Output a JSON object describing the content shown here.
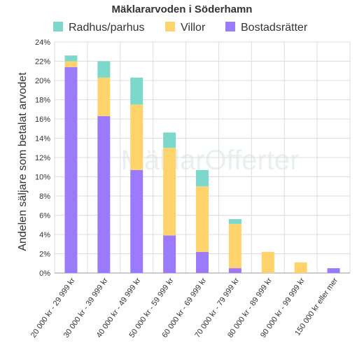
{
  "chart_data": {
    "type": "bar",
    "stacked": true,
    "title": "Mäklararvoden i Söderhamn",
    "ylabel": "Andelen säljare som betalat arvodet",
    "xlabel": "",
    "categories": [
      "20 000 kr - 29 999 kr",
      "30 000 kr - 39 999 kr",
      "40 000 kr - 49 999 kr",
      "50 000 kr - 59 999 kr",
      "60 000 kr - 69 999 kr",
      "70 000 kr - 79 999 kr",
      "80 000 kr - 89 999 kr",
      "90 000 kr - 99 999 kr",
      "150 000 kr eller mer"
    ],
    "series": [
      {
        "name": "Bostadsrätter",
        "color": "#9b7bfb",
        "values": [
          21.4,
          16.3,
          10.7,
          3.9,
          2.2,
          0.5,
          0,
          0,
          0.5
        ]
      },
      {
        "name": "Villor",
        "color": "#ffd36b",
        "values": [
          0.6,
          4.0,
          6.8,
          9.1,
          6.8,
          4.6,
          2.2,
          1.1,
          0
        ]
      },
      {
        "name": "Radhus/parhus",
        "color": "#7dd8cc",
        "values": [
          0.6,
          1.7,
          2.8,
          1.6,
          1.7,
          0.5,
          0,
          0,
          0
        ]
      }
    ],
    "legend_order": [
      "Radhus/parhus",
      "Villor",
      "Bostadsrätter"
    ],
    "ylim": [
      0,
      24
    ],
    "yticks": [
      "0%",
      "2%",
      "4%",
      "6%",
      "8%",
      "10%",
      "12%",
      "14%",
      "16%",
      "18%",
      "20%",
      "22%",
      "24%"
    ],
    "grid": true,
    "legend_position": "top"
  },
  "watermark": "MäklarOfferter"
}
